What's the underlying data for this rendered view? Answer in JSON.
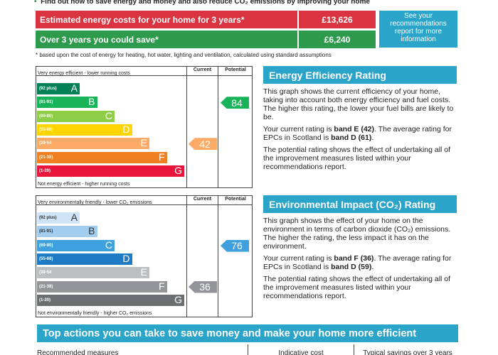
{
  "intro": "Find out how to save energy and money and also reduce CO₂ emissions by improving your home",
  "costs": [
    {
      "label": "Estimated energy costs for your home for 3 years*",
      "value": "£13,626"
    },
    {
      "label": "Over 3 years you could save*",
      "value": "£6,240"
    }
  ],
  "see_box": "See your recommendations report for more information",
  "footnote": "* based upon the cost of energy for heating, hot water, lighting and ventilation, calculated using standard assumptions",
  "charts": [
    {
      "col_current": "Current",
      "col_potential": "Potential",
      "top_label": "Very energy efficient - lower running costs",
      "bottom_label": "Not energy efficient - higher running costs",
      "bands": [
        {
          "range": "(92 plus)",
          "letter": "A"
        },
        {
          "range": "(81-91)",
          "letter": "B"
        },
        {
          "range": "(69-80)",
          "letter": "C"
        },
        {
          "range": "(55-68)",
          "letter": "D"
        },
        {
          "range": "(39-54",
          "letter": "E"
        },
        {
          "range": "(21-38)",
          "letter": "F"
        },
        {
          "range": "(1-20)",
          "letter": "G"
        }
      ],
      "current": 42,
      "potential": 84,
      "heading": "Energy Efficiency Rating",
      "paragraphs": [
        [
          "This graph shows the current efficiency of your home, taking into account both energy efficiency and fuel costs. The higher this rating, the lower your fuel bills are likely to be."
        ],
        [
          "Your current rating is ",
          "band E (42)",
          ". The average rating for EPCs in Scotland is ",
          "band D (61)",
          "."
        ],
        [
          "The potential rating shows the effect of undertaking all of the improvement measures listed within your recommendations report."
        ]
      ]
    },
    {
      "col_current": "Current",
      "col_potential": "Potential",
      "top_label": "Very environmentally friendly - lower CO₂ emissions",
      "bottom_label": "Not environmentally friendly - higher CO₂ emissions",
      "bands": [
        {
          "range": "(92 plus)",
          "letter": "A"
        },
        {
          "range": "(81-91)",
          "letter": "B"
        },
        {
          "range": "(69-80)",
          "letter": "C"
        },
        {
          "range": "(55-68)",
          "letter": "D"
        },
        {
          "range": "(39-54",
          "letter": "E"
        },
        {
          "range": "(21-38)",
          "letter": "F"
        },
        {
          "range": "(1-20)",
          "letter": "G"
        }
      ],
      "current": 36,
      "potential": 76,
      "heading": "Environmental Impact (CO₂) Rating",
      "paragraphs": [
        [
          "This graph shows the effect of your home on the environment in terms of carbon dioxide (CO₂) emissions. The higher the rating, the less impact it has on the environment."
        ],
        [
          "Your current rating is ",
          "band F (36)",
          ". The average rating for EPCs in Scotland is ",
          "band D (59)",
          "."
        ],
        [
          "The potential rating shows the effect of undertaking all of the improvement measures listed within your recommendations report."
        ]
      ]
    }
  ],
  "actions_title": "Top actions you can take to save money and make your home more efficient",
  "actions_columns": [
    "Recommended measures",
    "Indicative cost",
    "Typical savings over 3 years"
  ]
}
